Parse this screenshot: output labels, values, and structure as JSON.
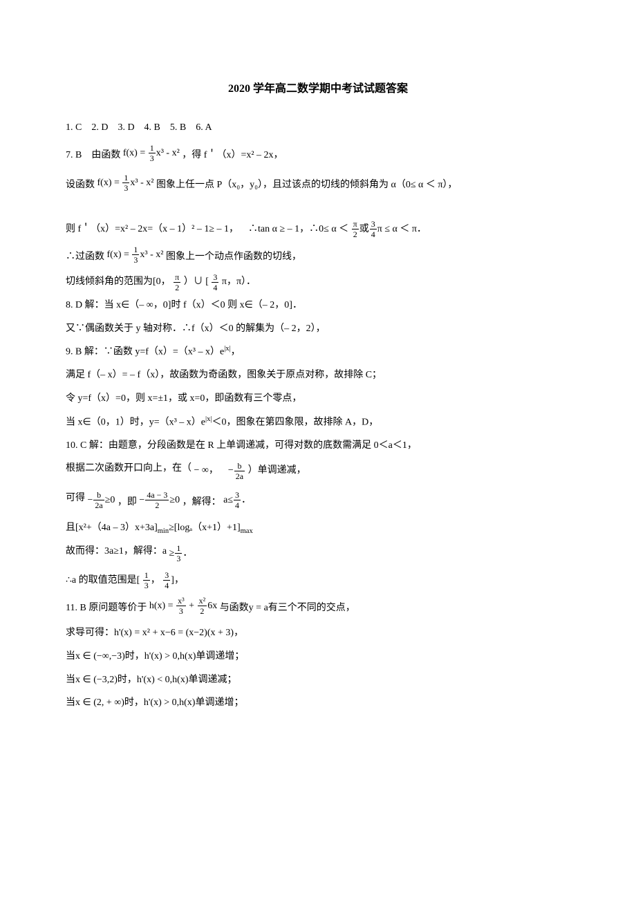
{
  "title": "2020 学年高二数学期中考试试题答案",
  "l1": "1. C 2. D 3. D 4. B 5. B 6. A",
  "l7_before": "7. B 由函数",
  "fxexpr_pre": "f(x) = ",
  "frac_1": "1",
  "frac_3": "3",
  "fx_tail": "x³ - x²",
  "l7_after": "，得 f＇（x）=x² – 2x，",
  "l8_before": "设函数",
  "l8_after": "图象上任一点 P（x₀，y₀），且过该点的切线的倾斜角为 α（0≤ α ＜ π），",
  "l9_a": "则 f＇（x）=x² – 2x=（x – 1）² – 1≥ – 1， ∴tan α ≥ – 1，∴0≤ α ＜",
  "l9_mid": "或",
  "l9_end": " ≤ α ＜ π．",
  "frac_pi": "π",
  "frac_2": "2",
  "frac_3n": "3",
  "frac_4": "4",
  "l10_before": "∴过函数",
  "l10_after": "图象上一个动点作函数的切线，",
  "l11_a": "切线倾斜角的范围为[0，",
  "l11_b": "）∪ [",
  "l11_c": "π，π）．",
  "l12": "8. D 解：当 x∈（– ∞，0]时 f（x）＜0 则 x∈（– 2，0]．",
  "l13": "又∵偶函数关于 y 轴对称．∴f（x）＜0 的解集为（– 2，2），",
  "l14": "9. B 解：∵函数 y=f（x）=（x³ – x）e",
  "l14_sup": "|x|",
  "l14_end": "，",
  "l15": "满足 f（– x）= – f（x），故函数为奇函数，图象关于原点对称，故排除 C；",
  "l16": "令 y=f（x）=0，则 x=±1，或 x=0，即函数有三个零点，",
  "l17": "当 x∈（0，1）时，y=（x³ – x）e",
  "l17_sup": "|x|",
  "l17_end": "＜0，图象在第四象限，故排除 A，D，",
  "l18": "10. C 解：由题意，分段函数是在 R 上单调递减，可得对数的底数需满足 0＜a＜1，",
  "l19_a": "根据二次函数开口向上，在（",
  "l19_inf": "− ∞， −",
  "frac_b": "b",
  "frac_2a": "2a",
  "l19_b": "）单调递减，",
  "l20_a": "可得 ",
  "l20_neg": "−",
  "l20_ge0": "≥0",
  "l20_b": "，即 ",
  "frac_4a_3": "4a − 3",
  "l20_c": "，解得：",
  "l20_d": "a≤",
  "l21": "且[x²+（4a – 3）x+3a]",
  "l21_sub1": "min",
  "l21_mid": "≥[logₐ（x+1）+1]",
  "l21_sub2": "max",
  "l22_a": "故而得：3a≥1，解得：a",
  "l22_ge": "≥",
  "l23_a": "∴a 的取值范围是[",
  "l23_comma": "，",
  "l23_b": "]，",
  "l24_a": "11. B 原问题等价于",
  "hx_pre": "h(x) = ",
  "frac_x3": "x³",
  "plus": " + ",
  "frac_x2": "x²",
  "hx_tail": "6x",
  "l24_b": "与函数y = a有三个不同的交点，",
  "l25": "求导可得：h'(x) = x² + x−6 = (x−2)(x + 3)，",
  "l26": "当x ∈ (−∞,−3)时，h'(x) > 0,h(x)单调递增；",
  "l27": "当x ∈ (−3,2)时，h'(x) < 0,h(x)单调递减；",
  "l28": "当x ∈ (2, + ∞)时，h'(x) > 0,h(x)单调递增；"
}
